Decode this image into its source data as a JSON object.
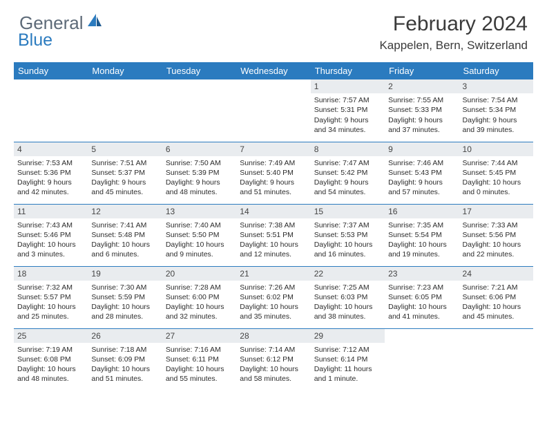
{
  "logo": {
    "general": "General",
    "blue": "Blue"
  },
  "title": "February 2024",
  "location": "Kappelen, Bern, Switzerland",
  "colors": {
    "header_bg": "#2b7bbf",
    "header_text": "#ffffff",
    "daynum_bg": "#e9ecef",
    "border": "#2b7bbf",
    "logo_gray": "#5d6a78",
    "logo_blue": "#2b7bbf"
  },
  "weekdays": [
    "Sunday",
    "Monday",
    "Tuesday",
    "Wednesday",
    "Thursday",
    "Friday",
    "Saturday"
  ],
  "weeks": [
    [
      null,
      null,
      null,
      null,
      {
        "n": "1",
        "rise": "7:57 AM",
        "set": "5:31 PM",
        "dl": "9 hours and 34 minutes."
      },
      {
        "n": "2",
        "rise": "7:55 AM",
        "set": "5:33 PM",
        "dl": "9 hours and 37 minutes."
      },
      {
        "n": "3",
        "rise": "7:54 AM",
        "set": "5:34 PM",
        "dl": "9 hours and 39 minutes."
      }
    ],
    [
      {
        "n": "4",
        "rise": "7:53 AM",
        "set": "5:36 PM",
        "dl": "9 hours and 42 minutes."
      },
      {
        "n": "5",
        "rise": "7:51 AM",
        "set": "5:37 PM",
        "dl": "9 hours and 45 minutes."
      },
      {
        "n": "6",
        "rise": "7:50 AM",
        "set": "5:39 PM",
        "dl": "9 hours and 48 minutes."
      },
      {
        "n": "7",
        "rise": "7:49 AM",
        "set": "5:40 PM",
        "dl": "9 hours and 51 minutes."
      },
      {
        "n": "8",
        "rise": "7:47 AM",
        "set": "5:42 PM",
        "dl": "9 hours and 54 minutes."
      },
      {
        "n": "9",
        "rise": "7:46 AM",
        "set": "5:43 PM",
        "dl": "9 hours and 57 minutes."
      },
      {
        "n": "10",
        "rise": "7:44 AM",
        "set": "5:45 PM",
        "dl": "10 hours and 0 minutes."
      }
    ],
    [
      {
        "n": "11",
        "rise": "7:43 AM",
        "set": "5:46 PM",
        "dl": "10 hours and 3 minutes."
      },
      {
        "n": "12",
        "rise": "7:41 AM",
        "set": "5:48 PM",
        "dl": "10 hours and 6 minutes."
      },
      {
        "n": "13",
        "rise": "7:40 AM",
        "set": "5:50 PM",
        "dl": "10 hours and 9 minutes."
      },
      {
        "n": "14",
        "rise": "7:38 AM",
        "set": "5:51 PM",
        "dl": "10 hours and 12 minutes."
      },
      {
        "n": "15",
        "rise": "7:37 AM",
        "set": "5:53 PM",
        "dl": "10 hours and 16 minutes."
      },
      {
        "n": "16",
        "rise": "7:35 AM",
        "set": "5:54 PM",
        "dl": "10 hours and 19 minutes."
      },
      {
        "n": "17",
        "rise": "7:33 AM",
        "set": "5:56 PM",
        "dl": "10 hours and 22 minutes."
      }
    ],
    [
      {
        "n": "18",
        "rise": "7:32 AM",
        "set": "5:57 PM",
        "dl": "10 hours and 25 minutes."
      },
      {
        "n": "19",
        "rise": "7:30 AM",
        "set": "5:59 PM",
        "dl": "10 hours and 28 minutes."
      },
      {
        "n": "20",
        "rise": "7:28 AM",
        "set": "6:00 PM",
        "dl": "10 hours and 32 minutes."
      },
      {
        "n": "21",
        "rise": "7:26 AM",
        "set": "6:02 PM",
        "dl": "10 hours and 35 minutes."
      },
      {
        "n": "22",
        "rise": "7:25 AM",
        "set": "6:03 PM",
        "dl": "10 hours and 38 minutes."
      },
      {
        "n": "23",
        "rise": "7:23 AM",
        "set": "6:05 PM",
        "dl": "10 hours and 41 minutes."
      },
      {
        "n": "24",
        "rise": "7:21 AM",
        "set": "6:06 PM",
        "dl": "10 hours and 45 minutes."
      }
    ],
    [
      {
        "n": "25",
        "rise": "7:19 AM",
        "set": "6:08 PM",
        "dl": "10 hours and 48 minutes."
      },
      {
        "n": "26",
        "rise": "7:18 AM",
        "set": "6:09 PM",
        "dl": "10 hours and 51 minutes."
      },
      {
        "n": "27",
        "rise": "7:16 AM",
        "set": "6:11 PM",
        "dl": "10 hours and 55 minutes."
      },
      {
        "n": "28",
        "rise": "7:14 AM",
        "set": "6:12 PM",
        "dl": "10 hours and 58 minutes."
      },
      {
        "n": "29",
        "rise": "7:12 AM",
        "set": "6:14 PM",
        "dl": "11 hours and 1 minute."
      },
      null,
      null
    ]
  ],
  "labels": {
    "sunrise": "Sunrise: ",
    "sunset": "Sunset: ",
    "daylight": "Daylight: "
  }
}
